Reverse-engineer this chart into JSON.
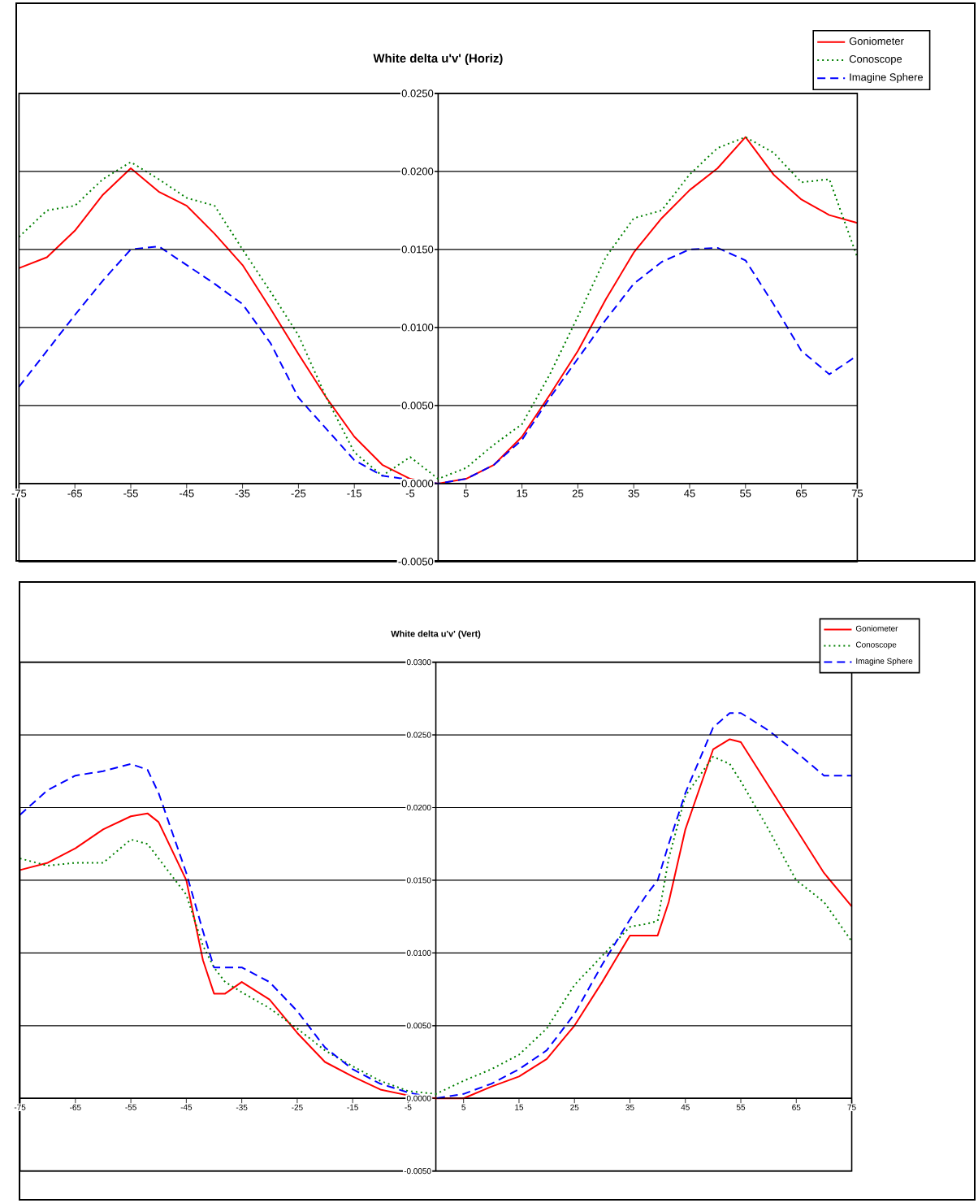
{
  "chart_data": [
    {
      "type": "line",
      "title": "White delta u'v' (Horiz)",
      "x": [
        -75,
        -70,
        -65,
        -60,
        -55,
        -50,
        -45,
        -40,
        -35,
        -30,
        -25,
        -20,
        -15,
        -10,
        -5,
        0,
        5,
        10,
        15,
        20,
        25,
        30,
        35,
        40,
        45,
        50,
        55,
        60,
        65,
        70,
        75
      ],
      "series": [
        {
          "name": "Goniometer",
          "color": "#ff0000",
          "line_style": "solid",
          "values": [
            0.0138,
            0.0145,
            0.0162,
            0.0185,
            0.0202,
            0.0187,
            0.0178,
            0.016,
            0.014,
            0.0112,
            0.0083,
            0.0055,
            0.003,
            0.0012,
            0.0003,
            0.0,
            0.0003,
            0.0012,
            0.003,
            0.0057,
            0.0085,
            0.0118,
            0.0148,
            0.017,
            0.0188,
            0.0202,
            0.0222,
            0.0198,
            0.0182,
            0.0172,
            0.0167
          ]
        },
        {
          "name": "Conoscope",
          "color": "#008000",
          "line_style": "dotted",
          "values": [
            0.0158,
            0.0175,
            0.0178,
            0.0195,
            0.0206,
            0.0195,
            0.0183,
            0.0178,
            0.015,
            0.0123,
            0.0095,
            0.0055,
            0.002,
            0.0005,
            0.0017,
            0.0003,
            0.001,
            0.0025,
            0.0038,
            0.007,
            0.0107,
            0.0145,
            0.017,
            0.0175,
            0.0198,
            0.0215,
            0.0222,
            0.0212,
            0.0193,
            0.0195,
            0.0145
          ]
        },
        {
          "name": "Imagine Sphere",
          "color": "#0000ff",
          "line_style": "dashed",
          "values": [
            0.0062,
            0.0085,
            0.0108,
            0.013,
            0.015,
            0.0152,
            0.014,
            0.0128,
            0.0115,
            0.009,
            0.0055,
            0.0035,
            0.0015,
            0.0005,
            null,
            0.0,
            0.0003,
            0.0012,
            0.0028,
            0.0055,
            0.008,
            0.0105,
            0.0128,
            0.0142,
            0.015,
            0.0151,
            0.0143,
            0.0115,
            0.0085,
            0.007,
            0.0082
          ]
        }
      ],
      "xlim": [
        -75,
        75
      ],
      "xticks": [
        -75,
        -65,
        -55,
        -45,
        -35,
        -25,
        -15,
        -5,
        5,
        15,
        25,
        35,
        45,
        55,
        65,
        75
      ],
      "ylim": [
        -0.005,
        0.025
      ],
      "yticks": [
        {
          "value": -0.005,
          "label": "-0.0050"
        },
        {
          "value": 0,
          "label": "0.0000"
        },
        {
          "value": 0.005,
          "label": "0.0050"
        },
        {
          "value": 0.01,
          "label": "0.0100"
        },
        {
          "value": 0.015,
          "label": "0.0150"
        },
        {
          "value": 0.02,
          "label": "0.0200"
        },
        {
          "value": 0.025,
          "label": "0.0250"
        }
      ],
      "grid": "y",
      "legend": "top right"
    },
    {
      "type": "line",
      "title": "White delta u'v' (Vert)",
      "x": [
        -75,
        -70,
        -65,
        -60,
        -55,
        -52,
        -50,
        -45,
        -42,
        -40,
        -38,
        -35,
        -30,
        -25,
        -20,
        -15,
        -10,
        -5,
        0,
        5,
        10,
        15,
        20,
        25,
        30,
        35,
        38,
        40,
        42,
        45,
        50,
        53,
        55,
        60,
        65,
        70,
        75
      ],
      "series": [
        {
          "name": "Goniometer",
          "color": "#ff0000",
          "line_style": "solid",
          "values": [
            0.0157,
            0.0162,
            0.0172,
            0.0185,
            0.0194,
            0.0196,
            0.019,
            0.015,
            0.0095,
            0.0072,
            0.0072,
            0.008,
            0.0068,
            0.0045,
            0.0025,
            0.0015,
            0.0006,
            0.0002,
            0.0,
            0.0,
            0.0008,
            0.0015,
            0.0027,
            0.005,
            0.008,
            0.0112,
            0.0112,
            0.0112,
            0.0135,
            0.0185,
            0.024,
            0.0247,
            0.0245,
            0.0215,
            0.0185,
            0.0155,
            0.0132
          ]
        },
        {
          "name": "Conoscope",
          "color": "#008000",
          "line_style": "dotted",
          "values": [
            0.0165,
            0.016,
            0.0162,
            0.0162,
            0.0178,
            0.0175,
            0.0165,
            0.014,
            0.0105,
            0.009,
            0.008,
            0.0073,
            0.0062,
            0.0048,
            0.0033,
            0.0022,
            0.0012,
            0.0005,
            0.0003,
            0.0012,
            0.002,
            0.003,
            0.0048,
            0.0078,
            0.0098,
            0.0118,
            0.012,
            0.0122,
            0.0165,
            0.0208,
            0.0235,
            0.023,
            0.0218,
            0.0185,
            0.015,
            0.0135,
            0.0108
          ]
        },
        {
          "name": "Imagine Sphere",
          "color": "#0000ff",
          "line_style": "dashed",
          "values": [
            0.0195,
            0.0212,
            0.0222,
            0.0225,
            0.023,
            0.0226,
            0.021,
            0.0155,
            0.0115,
            0.009,
            0.009,
            0.009,
            0.008,
            0.006,
            0.0035,
            0.002,
            0.001,
            0.0004,
            0.0,
            0.0003,
            0.001,
            0.002,
            0.0033,
            0.0058,
            0.0092,
            0.0123,
            0.014,
            0.015,
            0.0175,
            0.021,
            0.0255,
            0.0265,
            0.0265,
            0.0253,
            0.0238,
            0.0222,
            0.0222
          ]
        }
      ],
      "xlim": [
        -75,
        75
      ],
      "xticks": [
        -75,
        -65,
        -55,
        -45,
        -35,
        -25,
        -15,
        -5,
        5,
        15,
        25,
        35,
        45,
        55,
        65,
        75
      ],
      "ylim": [
        -0.005,
        0.03
      ],
      "yticks": [
        {
          "value": -0.005,
          "label": "-0.0050"
        },
        {
          "value": 0,
          "label": "0.0000"
        },
        {
          "value": 0.005,
          "label": "0.0050"
        },
        {
          "value": 0.01,
          "label": "0.0100"
        },
        {
          "value": 0.015,
          "label": "0.0150"
        },
        {
          "value": 0.02,
          "label": "0.0200"
        },
        {
          "value": 0.025,
          "label": "0.0250"
        },
        {
          "value": 0.03,
          "label": "0.0300"
        }
      ],
      "grid": "y",
      "legend": "top right"
    }
  ]
}
